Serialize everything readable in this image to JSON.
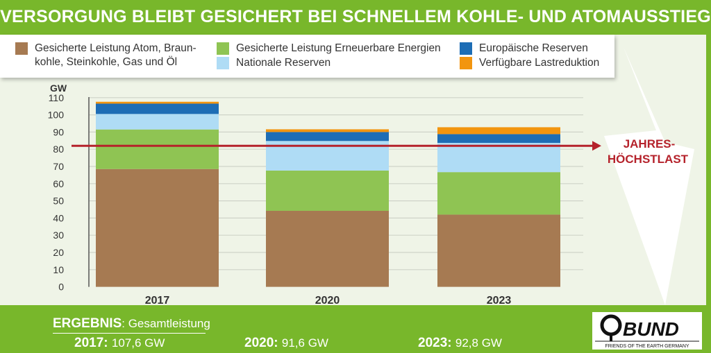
{
  "title": "VERSORGUNG BLEIBT GESICHERT BEI SCHNELLEM KOHLE- UND ATOMAUSSTIEG",
  "chart_data": {
    "type": "bar",
    "stacked": true,
    "ylabel": "GW",
    "ylim": [
      0,
      110
    ],
    "yticks": [
      0,
      10,
      20,
      30,
      40,
      50,
      60,
      70,
      80,
      90,
      100,
      110
    ],
    "grid": true,
    "legend_placement": "top",
    "categories": [
      "2017",
      "2020",
      "2023"
    ],
    "series": [
      {
        "name": "Gesicherte Leistung Atom, Braunkohle, Steinkohle, Gas und Öl",
        "legend_lines": [
          "Gesicherte Leistung Atom, Braun-",
          "kohle, Steinkohle, Gas und Öl"
        ],
        "color": "#a67a52",
        "values": [
          68.5,
          44.2,
          42.0
        ]
      },
      {
        "name": "Gesicherte Leistung Erneuerbare Energien",
        "color": "#8fc453",
        "values": [
          23.0,
          23.4,
          24.7
        ]
      },
      {
        "name": "Nationale Reserven",
        "color": "#afdcf5",
        "values": [
          9.0,
          17.2,
          17.0
        ]
      },
      {
        "name": "Europäische Reserven",
        "color": "#1d6db5",
        "values": [
          6.0,
          5.2,
          5.1
        ]
      },
      {
        "name": "Verfügbare Lastreduktion",
        "color": "#f2950f",
        "values": [
          1.1,
          1.6,
          4.0
        ]
      }
    ],
    "reference_line": {
      "label_lines": [
        "JAHRES-",
        "HÖCHSTLAST"
      ],
      "value": 82,
      "color": "#b5222b"
    }
  },
  "result": {
    "heading": "ERGEBNIS",
    "subheading": ": Gesamtleistung",
    "items": [
      {
        "year": "2017:",
        "value": "107,6 GW"
      },
      {
        "year": "2020:",
        "value": "91,6 GW"
      },
      {
        "year": "2023:",
        "value": "92,8 GW"
      }
    ]
  },
  "logo": {
    "name": "BUND",
    "tagline": "FRIENDS OF THE EARTH GERMANY"
  }
}
